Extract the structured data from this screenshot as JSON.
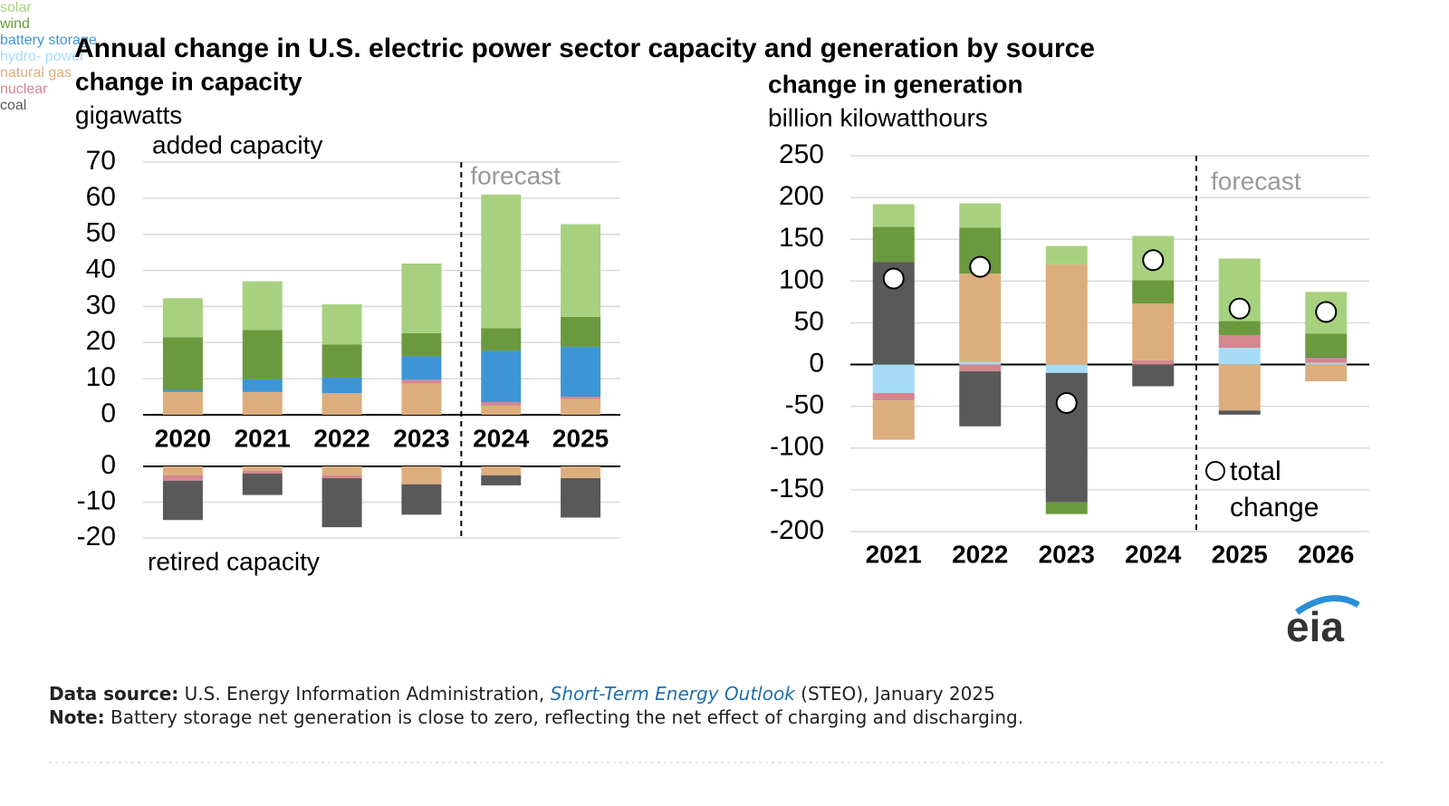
{
  "title": "Annual change in U.S. electric power sector capacity and generation by source",
  "chart_data": [
    {
      "type": "bar",
      "stacked": true,
      "title": "change in capacity",
      "y_label": "gigawatts",
      "categories": [
        "2020",
        "2021",
        "2022",
        "2023",
        "2024",
        "2025"
      ],
      "forecast": {
        "label": "forecast",
        "from": "2024"
      },
      "added": {
        "label": "added capacity",
        "ylim": [
          0,
          70
        ],
        "yticks": [
          0,
          10,
          20,
          30,
          40,
          50,
          60,
          70
        ],
        "series": [
          {
            "color": "#dcae7e",
            "values": [
              6.3,
              6.3,
              6,
              8.6,
              2.5,
              4.4
            ]
          },
          {
            "color": "#d5868f",
            "values": [
              0,
              0,
              0,
              1.1,
              1,
              0.6
            ]
          },
          {
            "color": "#3e95d6",
            "values": [
              0.6,
              3.5,
              4.3,
              6.5,
              14.3,
              13.8
            ]
          },
          {
            "color": "#6b9a3e",
            "values": [
              14.6,
              13.7,
              9.2,
              6.4,
              6.2,
              8.3
            ]
          },
          {
            "color": "#a8d17f",
            "values": [
              10.8,
              13.5,
              11.1,
              19.3,
              37,
              25.7
            ]
          }
        ]
      },
      "retired": {
        "label": "retired capacity",
        "ylim": [
          -20,
          0
        ],
        "yticks": [
          -20,
          -10,
          0
        ],
        "series": [
          {
            "color": "#dcae7e",
            "values": [
              -2.5,
              -1.2,
              -2.5,
              -5,
              -2.5,
              -3.3
            ]
          },
          {
            "color": "#d5868f",
            "values": [
              -1.5,
              -0.8,
              -0.8,
              0,
              0,
              0
            ]
          },
          {
            "color": "#595959",
            "values": [
              -11,
              -6,
              -13.7,
              -8.5,
              -2.8,
              -11
            ]
          }
        ]
      }
    },
    {
      "type": "bar",
      "stacked": true,
      "title": "change in generation",
      "y_label": "billion kilowatthours",
      "categories": [
        "2021",
        "2022",
        "2023",
        "2024",
        "2025",
        "2026"
      ],
      "forecast": {
        "label": "forecast",
        "from": "2025"
      },
      "ylim": [
        -200,
        250
      ],
      "yticks": [
        -200,
        -150,
        -100,
        -50,
        0,
        50,
        100,
        150,
        200,
        250
      ],
      "series": [
        {
          "name": "solar",
          "color": "#a8d17f",
          "values": [
            27,
            29,
            22,
            53,
            75,
            50
          ]
        },
        {
          "name": "wind",
          "color": "#6b9a3e",
          "values": [
            42,
            55,
            -14,
            28,
            17,
            28
          ]
        },
        {
          "name": "battery\nstorage",
          "color": "#3e95d6",
          "values": [
            0,
            0,
            0,
            0,
            0,
            0
          ]
        },
        {
          "name": "hydro-\npower",
          "color": "#a6dcf6",
          "values": [
            -34,
            3,
            -10,
            0,
            20,
            2
          ]
        },
        {
          "name": "natural\ngas",
          "color": "#dcae7e",
          "values": [
            -47,
            106,
            120,
            68,
            -55,
            -20
          ]
        },
        {
          "name": "nuclear",
          "color": "#d5868f",
          "values": [
            -9,
            -8,
            0,
            5,
            15,
            6
          ]
        },
        {
          "name": "coal",
          "color": "#595959",
          "values": [
            123,
            -66,
            -155,
            -26,
            -5,
            1
          ]
        }
      ],
      "total": {
        "name": "total\nchange",
        "values": [
          103,
          117,
          -46,
          125,
          67,
          63
        ]
      }
    }
  ],
  "logo": "eia",
  "source": {
    "label": "Data source:",
    "before": " U.S. Energy Information Administration, ",
    "link": "Short-Term Energy Outlook",
    "after": " (STEO), January 2025"
  },
  "note": {
    "label": "Note:",
    "text": " Battery storage net generation is close to zero, reflecting the net effect of charging and discharging."
  }
}
